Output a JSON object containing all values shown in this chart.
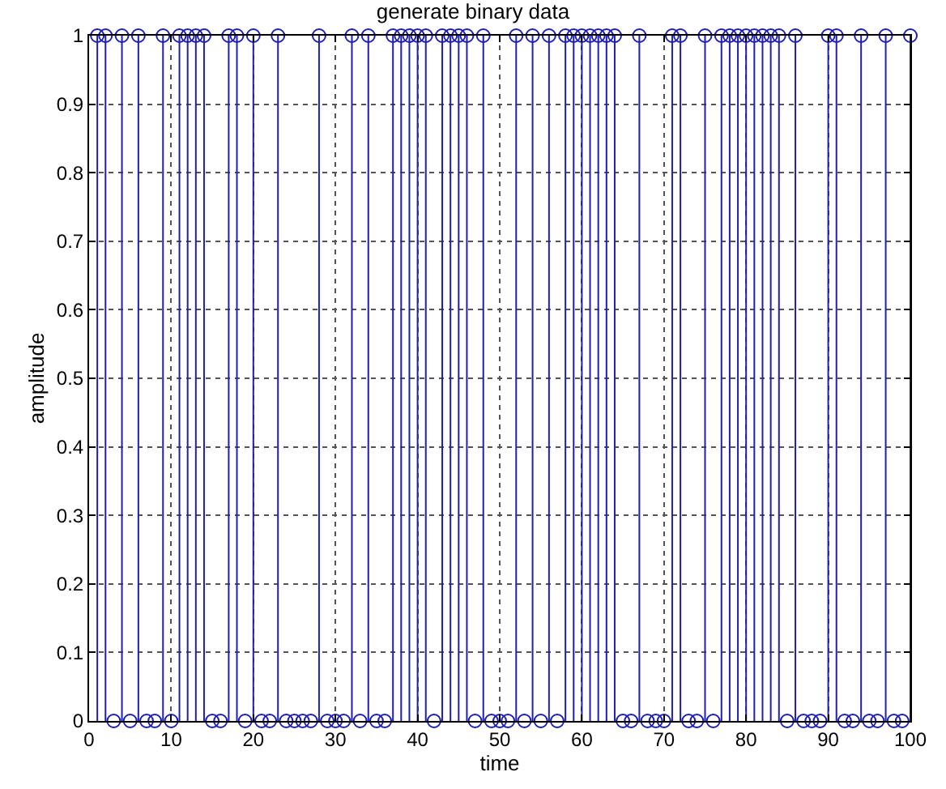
{
  "chart_data": {
    "type": "lollipop",
    "title": "generate binary data",
    "xlabel": "time",
    "ylabel": "amplitude",
    "x": [
      1,
      2,
      3,
      4,
      5,
      6,
      7,
      8,
      9,
      10,
      11,
      12,
      13,
      14,
      15,
      16,
      17,
      18,
      19,
      20,
      21,
      22,
      23,
      24,
      25,
      26,
      27,
      28,
      29,
      30,
      31,
      32,
      33,
      34,
      35,
      36,
      37,
      38,
      39,
      40,
      41,
      42,
      43,
      44,
      45,
      46,
      47,
      48,
      49,
      50,
      51,
      52,
      53,
      54,
      55,
      56,
      57,
      58,
      59,
      60,
      61,
      62,
      63,
      64,
      65,
      66,
      67,
      68,
      69,
      70,
      71,
      72,
      73,
      74,
      75,
      76,
      77,
      78,
      79,
      80,
      81,
      82,
      83,
      84,
      85,
      86,
      87,
      88,
      89,
      90,
      91,
      92,
      93,
      94,
      95,
      96,
      97,
      98,
      99,
      100
    ],
    "series": [
      {
        "color": "#1f1fb4",
        "values": [
          1,
          1,
          0,
          1,
          0,
          1,
          0,
          0,
          1,
          0,
          1,
          1,
          1,
          1,
          0,
          0,
          1,
          1,
          0,
          1,
          0,
          0,
          1,
          0,
          0,
          0,
          0,
          1,
          0,
          0,
          0,
          1,
          0,
          1,
          0,
          0,
          1,
          1,
          1,
          1,
          1,
          0,
          1,
          1,
          1,
          1,
          0,
          1,
          0,
          0,
          0,
          1,
          0,
          1,
          0,
          1,
          0,
          1,
          1,
          1,
          1,
          1,
          1,
          1,
          0,
          0,
          1,
          0,
          0,
          0,
          1,
          1,
          0,
          0,
          1,
          0,
          1,
          1,
          1,
          1,
          1,
          1,
          1,
          1,
          0,
          1,
          0,
          0,
          0,
          1,
          1,
          0,
          0,
          1,
          0,
          0,
          1,
          0,
          0,
          1
        ]
      }
    ],
    "xlim": [
      0,
      100
    ],
    "xticks": [
      0,
      10,
      20,
      30,
      40,
      50,
      60,
      70,
      80,
      90,
      100
    ],
    "ylim": [
      0,
      1
    ],
    "yticks": [
      0,
      0.1,
      0.2,
      0.3,
      0.4,
      0.5,
      0.6,
      0.7,
      0.8,
      0.9,
      1
    ],
    "grid": true,
    "marker": "circle",
    "line_style": "solid"
  }
}
